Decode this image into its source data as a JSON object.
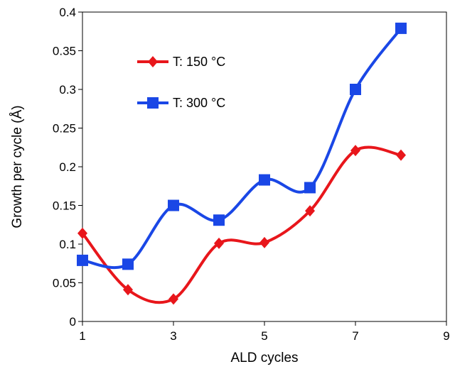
{
  "chart_data": {
    "type": "line",
    "xlabel": "ALD cycles",
    "ylabel": "Growth per cycle (Å)",
    "xlim": [
      1,
      9
    ],
    "ylim": [
      0,
      0.4
    ],
    "xticks": [
      "1",
      "3",
      "5",
      "7",
      "9"
    ],
    "yticks": [
      "0",
      "0.05",
      "0.1",
      "0.15",
      "0.2",
      "0.25",
      "0.3",
      "0.35",
      "0.4"
    ],
    "grid": false,
    "legend_position": "top-left",
    "series": [
      {
        "name": "T: 150 °C",
        "color": "#e8161b",
        "marker": "diamond",
        "x": [
          1,
          2,
          3,
          4,
          5,
          6,
          7,
          8
        ],
        "y": [
          0.114,
          0.041,
          0.029,
          0.101,
          0.102,
          0.143,
          0.221,
          0.215
        ]
      },
      {
        "name": "T: 300 °C",
        "color": "#1a47e6",
        "marker": "square",
        "x": [
          1,
          2,
          3,
          4,
          5,
          6,
          7,
          8
        ],
        "y": [
          0.079,
          0.074,
          0.15,
          0.131,
          0.183,
          0.173,
          0.3,
          0.379
        ]
      }
    ]
  }
}
